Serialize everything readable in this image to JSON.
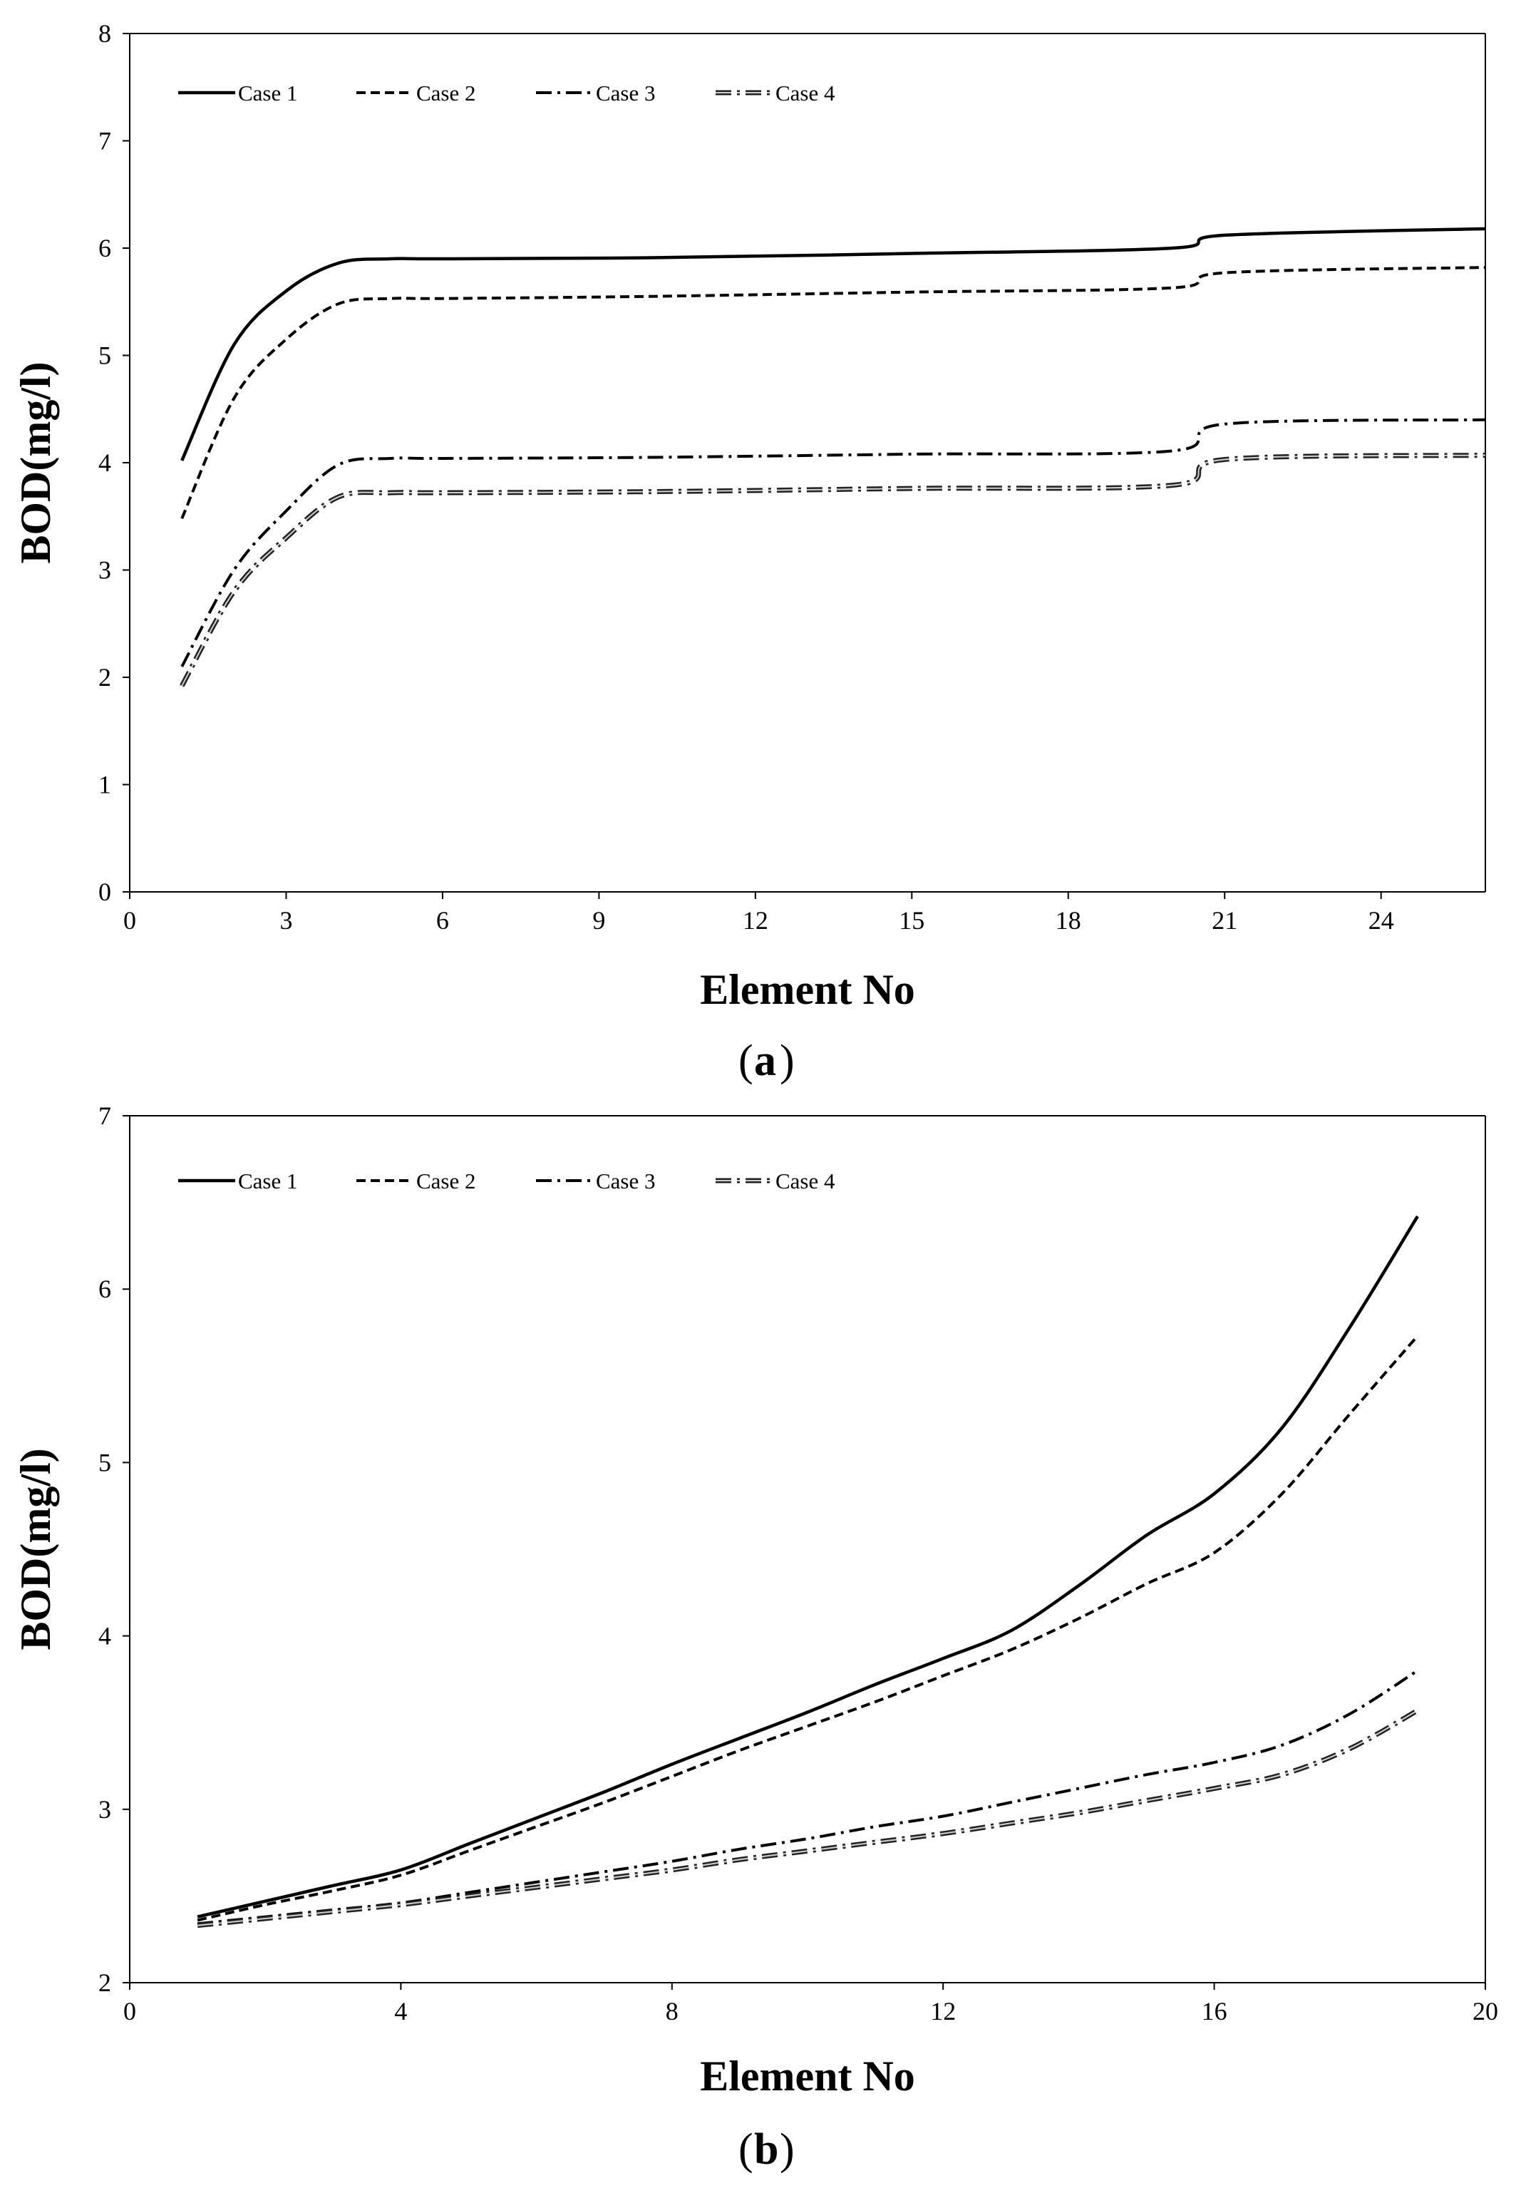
{
  "chart_data": [
    {
      "type": "line",
      "panel_label": "a",
      "title": "",
      "xlabel": "Element No",
      "ylabel": "BOD(mg/l)",
      "xlim": [
        0,
        26
      ],
      "ylim": [
        0,
        8
      ],
      "xticks": [
        0,
        3,
        6,
        9,
        12,
        15,
        18,
        21,
        24
      ],
      "yticks": [
        0,
        1,
        2,
        3,
        4,
        5,
        6,
        7,
        8
      ],
      "legend_position": "top-left",
      "grid": false,
      "x": [
        1,
        2,
        3,
        4,
        5,
        6,
        10,
        15,
        20,
        21,
        26
      ],
      "series": [
        {
          "name": "Case 1",
          "style": "solid",
          "values": [
            4.02,
            5.1,
            5.6,
            5.86,
            5.9,
            5.9,
            5.91,
            5.95,
            6.0,
            6.12,
            6.18
          ]
        },
        {
          "name": "Case 2",
          "style": "dash",
          "values": [
            3.48,
            4.6,
            5.15,
            5.48,
            5.53,
            5.53,
            5.55,
            5.59,
            5.63,
            5.77,
            5.82
          ]
        },
        {
          "name": "Case 3",
          "style": "dashdot",
          "values": [
            2.1,
            3.0,
            3.55,
            3.98,
            4.04,
            4.04,
            4.05,
            4.08,
            4.11,
            4.36,
            4.4
          ]
        },
        {
          "name": "Case 4",
          "style": "double-dashdot",
          "values": [
            1.92,
            2.8,
            3.3,
            3.68,
            3.72,
            3.72,
            3.73,
            3.76,
            3.79,
            4.03,
            4.07
          ]
        }
      ]
    },
    {
      "type": "line",
      "panel_label": "b",
      "title": "",
      "xlabel": "Element No",
      "ylabel": "BOD(mg/l)",
      "xlim": [
        0,
        20
      ],
      "ylim": [
        2,
        7
      ],
      "xticks": [
        0,
        4,
        8,
        12,
        16,
        20
      ],
      "yticks": [
        2,
        3,
        4,
        5,
        6,
        7
      ],
      "legend_position": "top-left",
      "grid": false,
      "x": [
        1,
        2,
        3,
        4,
        5,
        6,
        7,
        8,
        9,
        10,
        11,
        12,
        13,
        14,
        15,
        16,
        17,
        18,
        19
      ],
      "series": [
        {
          "name": "Case 1",
          "style": "solid",
          "values": [
            2.38,
            2.47,
            2.56,
            2.65,
            2.8,
            2.95,
            3.1,
            3.26,
            3.41,
            3.56,
            3.72,
            3.87,
            4.03,
            4.29,
            4.58,
            4.82,
            5.2,
            5.78,
            6.42
          ]
        },
        {
          "name": "Case 2",
          "style": "dash",
          "values": [
            2.36,
            2.45,
            2.53,
            2.62,
            2.76,
            2.9,
            3.04,
            3.19,
            3.34,
            3.48,
            3.62,
            3.77,
            3.92,
            4.1,
            4.3,
            4.48,
            4.82,
            5.28,
            5.73
          ]
        },
        {
          "name": "Case 3",
          "style": "dashdot",
          "values": [
            2.34,
            2.38,
            2.42,
            2.46,
            2.52,
            2.58,
            2.64,
            2.7,
            2.77,
            2.83,
            2.9,
            2.96,
            3.04,
            3.12,
            3.2,
            3.27,
            3.37,
            3.55,
            3.8
          ]
        },
        {
          "name": "Case 4",
          "style": "double-dashdot",
          "values": [
            2.33,
            2.37,
            2.41,
            2.45,
            2.5,
            2.55,
            2.6,
            2.65,
            2.71,
            2.76,
            2.81,
            2.86,
            2.92,
            2.98,
            3.05,
            3.12,
            3.2,
            3.35,
            3.57
          ]
        }
      ]
    }
  ]
}
